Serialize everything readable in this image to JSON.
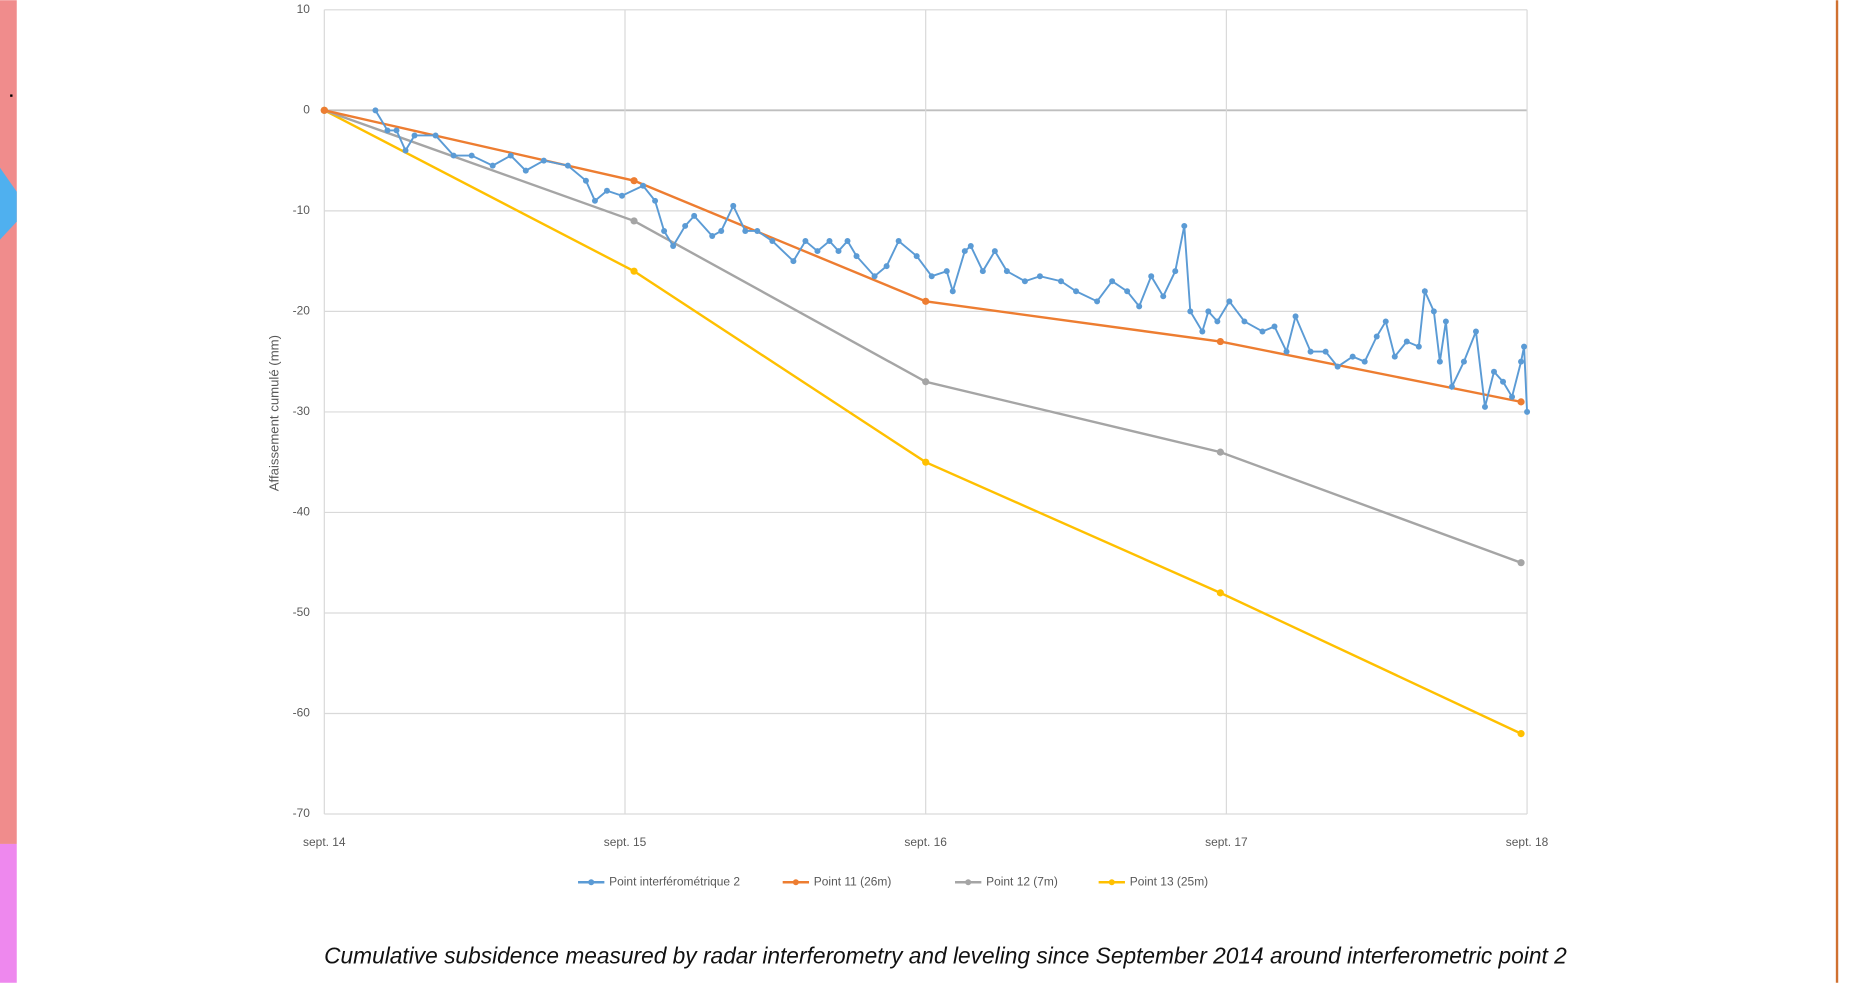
{
  "chart_data": {
    "type": "line",
    "y_label": "Affaissement cumulé (mm)",
    "xlim": [
      2014.67,
      2018.67
    ],
    "xticks": [
      {
        "value": 2014.67,
        "label": "sept. 14"
      },
      {
        "value": 2015.67,
        "label": "sept. 15"
      },
      {
        "value": 2016.67,
        "label": "sept. 16"
      },
      {
        "value": 2017.67,
        "label": "sept. 17"
      },
      {
        "value": 2018.67,
        "label": "sept. 18"
      }
    ],
    "ylim": [
      -70,
      10
    ],
    "yticks": [
      10,
      0,
      -10,
      -20,
      -30,
      -40,
      -50,
      -60,
      -70
    ],
    "grid": true,
    "series": [
      {
        "name": "Point interférométrique 2",
        "color": "#5b9bd5",
        "x": [
          2014.84,
          2014.88,
          2014.91,
          2014.94,
          2014.97,
          2015.04,
          2015.1,
          2015.16,
          2015.23,
          2015.29,
          2015.34,
          2015.4,
          2015.48,
          2015.54,
          2015.57,
          2015.61,
          2015.66,
          2015.73,
          2015.77,
          2015.8,
          2015.83,
          2015.87,
          2015.9,
          2015.96,
          2015.99,
          2016.03,
          2016.07,
          2016.11,
          2016.16,
          2016.23,
          2016.27,
          2016.31,
          2016.35,
          2016.38,
          2016.41,
          2016.44,
          2016.5,
          2016.54,
          2016.58,
          2016.64,
          2016.69,
          2016.74,
          2016.76,
          2016.8,
          2016.82,
          2016.86,
          2016.9,
          2016.94,
          2017.0,
          2017.05,
          2017.12,
          2017.17,
          2017.24,
          2017.29,
          2017.34,
          2017.38,
          2017.42,
          2017.46,
          2017.5,
          2017.53,
          2017.55,
          2017.59,
          2017.61,
          2017.64,
          2017.68,
          2017.73,
          2017.79,
          2017.83,
          2017.87,
          2017.9,
          2017.95,
          2018.0,
          2018.04,
          2018.09,
          2018.13,
          2018.17,
          2018.2,
          2018.23,
          2018.27,
          2018.31,
          2018.33,
          2018.36,
          2018.38,
          2018.4,
          2018.42,
          2018.46,
          2018.5,
          2018.53,
          2018.56,
          2018.59,
          2018.62,
          2018.65,
          2018.66,
          2018.67
        ],
        "values": [
          0,
          -2,
          -2,
          -4,
          -2.5,
          -2.5,
          -4.5,
          -4.5,
          -5.5,
          -4.5,
          -6,
          -5,
          -5.5,
          -7,
          -9,
          -8,
          -8.5,
          -7.5,
          -9,
          -12,
          -13.5,
          -11.5,
          -10.5,
          -12.5,
          -12,
          -9.5,
          -12,
          -12,
          -13,
          -15,
          -13,
          -14,
          -13,
          -14,
          -13,
          -14.5,
          -16.5,
          -15.5,
          -13,
          -14.5,
          -16.5,
          -16,
          -18,
          -14,
          -13.5,
          -16,
          -14,
          -16,
          -17,
          -16.5,
          -17,
          -18,
          -19,
          -17,
          -18,
          -19.5,
          -16.5,
          -18.5,
          -16,
          -11.5,
          -20,
          -22,
          -20,
          -21,
          -19,
          -21,
          -22,
          -21.5,
          -24,
          -20.5,
          -24,
          -24,
          -25.5,
          -24.5,
          -25,
          -22.5,
          -21,
          -24.5,
          -23,
          -23.5,
          -18,
          -20,
          -25,
          -21,
          -27.5,
          -25,
          -22,
          -29.5,
          -26,
          -27,
          -28.5,
          -25,
          -23.5,
          -30
        ]
      },
      {
        "name": "Point 11 (26m)",
        "color": "#ed7d31",
        "x": [
          2014.67,
          2015.7,
          2016.67,
          2017.65,
          2018.65
        ],
        "values": [
          0,
          -7,
          -19,
          -23,
          -29
        ]
      },
      {
        "name": "Point 12 (7m)",
        "color": "#a5a5a5",
        "x": [
          2014.67,
          2015.7,
          2016.67,
          2017.65,
          2018.65
        ],
        "values": [
          0,
          -11,
          -27,
          -34,
          -45
        ]
      },
      {
        "name": "Point 13 (25m)",
        "color": "#ffc000",
        "x": [
          2014.67,
          2015.7,
          2016.67,
          2017.65,
          2018.65
        ],
        "values": [
          0,
          -16,
          -35,
          -48,
          -62
        ]
      }
    ]
  },
  "caption": "Cumulative subsidence measured by radar interferometry and leveling since September 2014 around interferometric point 2"
}
